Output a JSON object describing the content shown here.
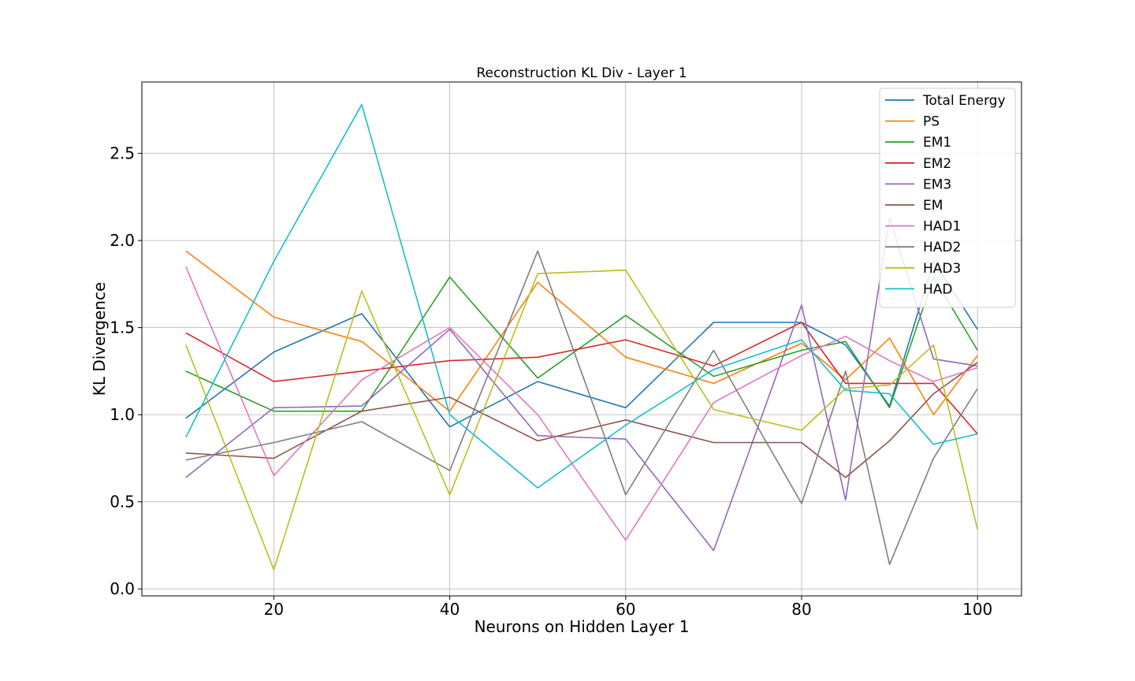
{
  "chart_data": {
    "type": "line",
    "title": "Reconstruction KL Div - Layer 1",
    "xlabel": "Neurons on Hidden Layer 1",
    "ylabel": "KL Divergence",
    "x": [
      10,
      20,
      30,
      40,
      50,
      60,
      70,
      80,
      85,
      90,
      95,
      100
    ],
    "xlim": [
      5,
      105
    ],
    "ylim": [
      -0.04,
      2.91
    ],
    "xticks": [
      20,
      40,
      60,
      80,
      100
    ],
    "xtick_labels": [
      "20",
      "40",
      "60",
      "80",
      "100"
    ],
    "yticks": [
      0.0,
      0.5,
      1.0,
      1.5,
      2.0,
      2.5
    ],
    "ytick_labels": [
      "0.0",
      "0.5",
      "1.0",
      "1.5",
      "2.0",
      "2.5"
    ],
    "grid": true,
    "legend_position": "top-right",
    "series": [
      {
        "name": "Total Energy",
        "color": "#1f77b4",
        "values": [
          0.98,
          1.36,
          1.58,
          0.93,
          1.19,
          1.04,
          1.53,
          1.53,
          1.4,
          1.05,
          1.88,
          1.49
        ]
      },
      {
        "name": "PS",
        "color": "#ff7f0e",
        "values": [
          1.94,
          1.56,
          1.42,
          1.02,
          1.76,
          1.33,
          1.18,
          1.41,
          1.2,
          1.44,
          1.0,
          1.34
        ]
      },
      {
        "name": "EM1",
        "color": "#2ca02c",
        "values": [
          1.25,
          1.02,
          1.02,
          1.79,
          1.21,
          1.57,
          1.22,
          1.37,
          1.42,
          1.04,
          1.79,
          1.37
        ]
      },
      {
        "name": "EM2",
        "color": "#d62728",
        "values": [
          1.47,
          1.19,
          1.25,
          1.31,
          1.33,
          1.43,
          1.28,
          1.53,
          1.18,
          1.18,
          1.18,
          0.89
        ]
      },
      {
        "name": "EM3",
        "color": "#9467bd",
        "values": [
          0.64,
          1.04,
          1.05,
          1.49,
          0.88,
          0.86,
          0.22,
          1.63,
          0.51,
          2.13,
          1.32,
          1.28
        ]
      },
      {
        "name": "EM",
        "color": "#8c564b",
        "values": [
          0.78,
          0.75,
          1.02,
          1.1,
          0.85,
          0.97,
          0.84,
          0.84,
          0.64,
          0.85,
          1.12,
          1.3
        ]
      },
      {
        "name": "HAD1",
        "color": "#e377c2",
        "values": [
          1.85,
          0.65,
          1.2,
          1.5,
          1.0,
          0.28,
          1.07,
          1.34,
          1.45,
          1.31,
          1.19,
          1.27
        ]
      },
      {
        "name": "HAD2",
        "color": "#7f7f7f",
        "values": [
          0.74,
          0.84,
          0.96,
          0.68,
          1.94,
          0.54,
          1.37,
          0.49,
          1.25,
          0.14,
          0.75,
          1.15
        ]
      },
      {
        "name": "HAD3",
        "color": "#bcbd22",
        "values": [
          1.4,
          0.11,
          1.71,
          0.54,
          1.81,
          1.83,
          1.03,
          0.91,
          1.15,
          1.17,
          1.4,
          0.34
        ]
      },
      {
        "name": "HAD",
        "color": "#17becf",
        "values": [
          0.87,
          1.88,
          2.78,
          1.0,
          0.58,
          0.94,
          1.26,
          1.43,
          1.14,
          1.12,
          0.83,
          0.89
        ]
      }
    ]
  }
}
